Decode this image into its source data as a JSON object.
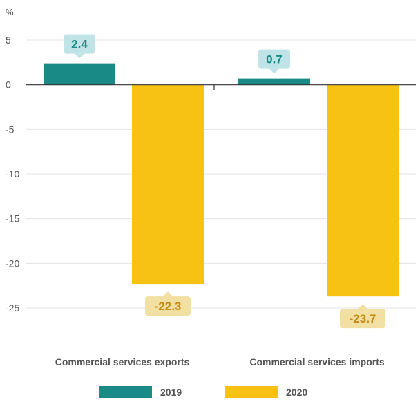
{
  "chart_data": {
    "type": "bar",
    "unit_label": "%",
    "categories": [
      "Commercial services exports",
      "Commercial services imports"
    ],
    "series": [
      {
        "name": "2019",
        "values": [
          2.4,
          0.7
        ],
        "color": "#1a8a87",
        "label_bg": "#bfe3e6",
        "label_color": "#1a8a87"
      },
      {
        "name": "2020",
        "values": [
          -22.3,
          -23.7
        ],
        "color": "#f7c214",
        "label_bg": "#f2dfa2",
        "label_color": "#c48a12"
      }
    ],
    "y_ticks": [
      5,
      0,
      -5,
      -10,
      -15,
      -20,
      -25
    ],
    "ylim": [
      -28.5,
      7.5
    ],
    "grid": true,
    "legend_position": "bottom-center"
  }
}
